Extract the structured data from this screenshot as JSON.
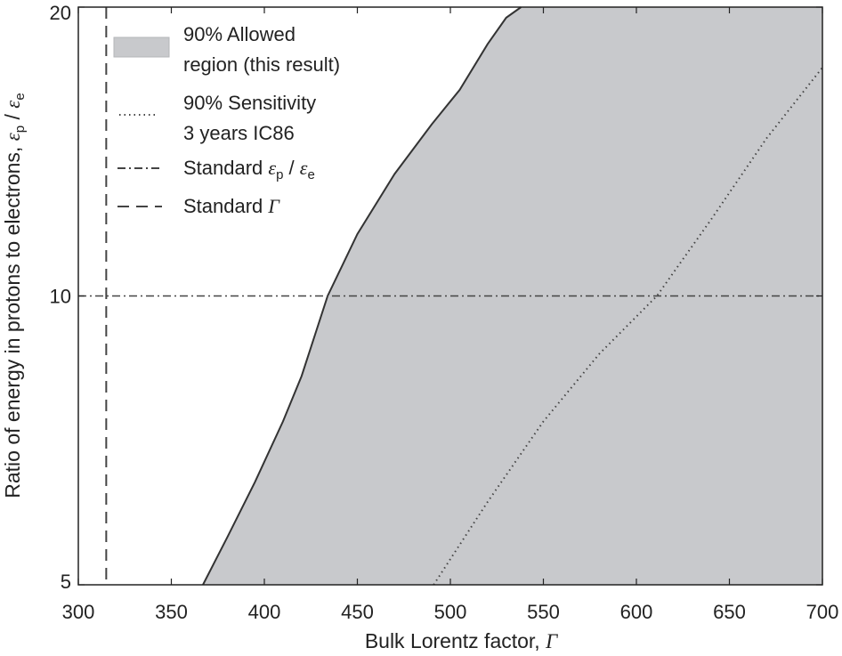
{
  "chart_data": {
    "type": "area",
    "x_axis": {
      "label": "Bulk Lorentz factor, ",
      "label_symbol": "Γ",
      "range": [
        300,
        700
      ],
      "ticks": [
        300,
        350,
        400,
        450,
        500,
        550,
        600,
        650,
        700
      ],
      "tick_labels": [
        "300",
        "350",
        "400",
        "450",
        "500",
        "550",
        "600",
        "650",
        "700"
      ]
    },
    "y_axis": {
      "label": "Ratio of energy in protons to electrons, ",
      "label_symbol": "ε",
      "label_sub_p": "p",
      "label_sep": " / ",
      "label_sub_e": "e",
      "scale": "log",
      "range": [
        5,
        20
      ],
      "ticks": [
        5,
        10,
        20
      ],
      "tick_labels": [
        "5",
        "10",
        "20"
      ]
    },
    "grid": false,
    "legend_position": "top-left",
    "series": [
      {
        "key": "allowed",
        "name_line1": "90% Allowed",
        "name_line2": "region (this result)",
        "style": "filled",
        "color": "#c8c9cc",
        "edge_color": "#333333",
        "boundary": [
          {
            "x": 367,
            "y": 5.0
          },
          {
            "x": 380,
            "y": 5.6
          },
          {
            "x": 395,
            "y": 6.4
          },
          {
            "x": 410,
            "y": 7.4
          },
          {
            "x": 420,
            "y": 8.25
          },
          {
            "x": 434,
            "y": 10.0
          },
          {
            "x": 450,
            "y": 11.6
          },
          {
            "x": 470,
            "y": 13.4
          },
          {
            "x": 490,
            "y": 15.1
          },
          {
            "x": 505,
            "y": 16.4
          },
          {
            "x": 520,
            "y": 18.3
          },
          {
            "x": 530,
            "y": 19.5
          },
          {
            "x": 538,
            "y": 20.0
          }
        ]
      },
      {
        "key": "sensitivity",
        "name_line1": "90% Sensitivity",
        "name_line2": "3 years IC86",
        "style": "dotted",
        "color": "#444444",
        "points": [
          {
            "x": 491,
            "y": 5.0
          },
          {
            "x": 520,
            "y": 6.1
          },
          {
            "x": 550,
            "y": 7.4
          },
          {
            "x": 580,
            "y": 8.7
          },
          {
            "x": 611,
            "y": 10.0
          },
          {
            "x": 640,
            "y": 12.0
          },
          {
            "x": 670,
            "y": 14.6
          },
          {
            "x": 700,
            "y": 17.3
          }
        ]
      },
      {
        "key": "std_ratio",
        "name_text": "Standard ",
        "name_symbol": "ε",
        "name_sub_p": "p",
        "name_sep": " / ",
        "name_sub_e": "e",
        "style": "dash-dot",
        "color": "#444444",
        "y": 10
      },
      {
        "key": "std_gamma",
        "name_text": "Standard ",
        "name_symbol": "Γ",
        "style": "dashed",
        "color": "#444444",
        "x": 315
      }
    ]
  }
}
